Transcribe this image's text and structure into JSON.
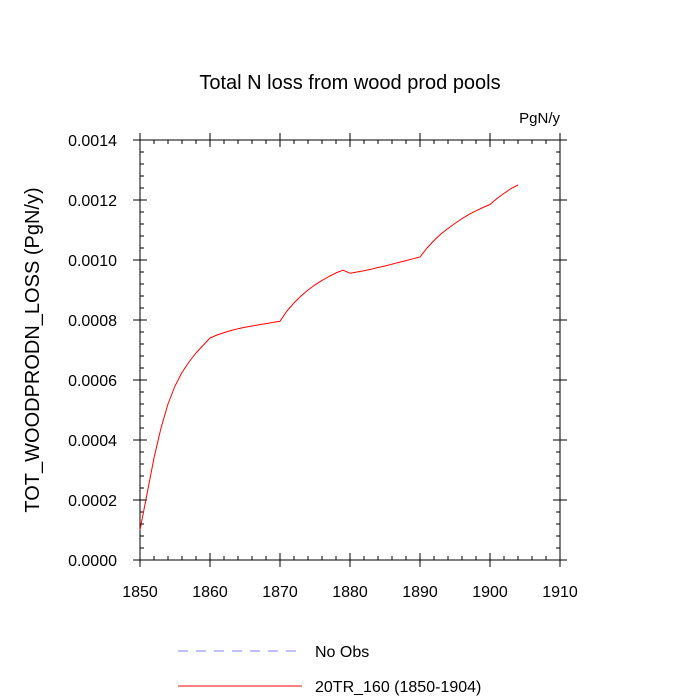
{
  "chart_data": {
    "type": "line",
    "title": "Total N loss from wood prod pools",
    "units_label": "PgN/y",
    "ylabel": "TOT_WOODPRODN_LOSS  (PgN/y)",
    "xlabel": "",
    "xlim": [
      1850,
      1910
    ],
    "ylim": [
      0.0,
      0.0014
    ],
    "xticks": [
      "1850",
      "1860",
      "1870",
      "1880",
      "1890",
      "1900",
      "1910"
    ],
    "yticks": [
      "0.0000",
      "0.0002",
      "0.0004",
      "0.0006",
      "0.0008",
      "0.0010",
      "0.0012",
      "0.0014"
    ],
    "grid": false,
    "legend_position": "bottom",
    "series": [
      {
        "name": "No Obs",
        "color": "#8080ff",
        "style": "dashed",
        "x": [],
        "y": []
      },
      {
        "name": "20TR_160 (1850-1904)",
        "color": "#ff0000",
        "style": "solid",
        "x": [
          1850,
          1851,
          1852,
          1853,
          1854,
          1855,
          1856,
          1857,
          1858,
          1859,
          1860,
          1861,
          1862,
          1863,
          1864,
          1865,
          1866,
          1867,
          1868,
          1869,
          1870,
          1871,
          1872,
          1873,
          1874,
          1875,
          1876,
          1877,
          1878,
          1879,
          1880,
          1881,
          1882,
          1883,
          1884,
          1885,
          1886,
          1887,
          1888,
          1889,
          1890,
          1891,
          1892,
          1893,
          1894,
          1895,
          1896,
          1897,
          1898,
          1899,
          1900,
          1901,
          1902,
          1903,
          1904
        ],
        "y": [
          0.0001,
          0.00022,
          0.00034,
          0.00044,
          0.00052,
          0.00058,
          0.000625,
          0.00066,
          0.00069,
          0.000715,
          0.00074,
          0.00075,
          0.000758,
          0.000765,
          0.000771,
          0.000776,
          0.00078,
          0.000784,
          0.000788,
          0.000792,
          0.000796,
          0.00083,
          0.000857,
          0.00088,
          0.0009,
          0.000917,
          0.000932,
          0.000945,
          0.000957,
          0.000966,
          0.000956,
          0.00096,
          0.000964,
          0.000969,
          0.000975,
          0.00098,
          0.000986,
          0.000992,
          0.000998,
          0.001004,
          0.00101,
          0.00104,
          0.001065,
          0.001087,
          0.001105,
          0.001122,
          0.001138,
          0.001152,
          0.001164,
          0.001175,
          0.001185,
          0.001205,
          0.001222,
          0.001238,
          0.00125
        ]
      }
    ]
  }
}
